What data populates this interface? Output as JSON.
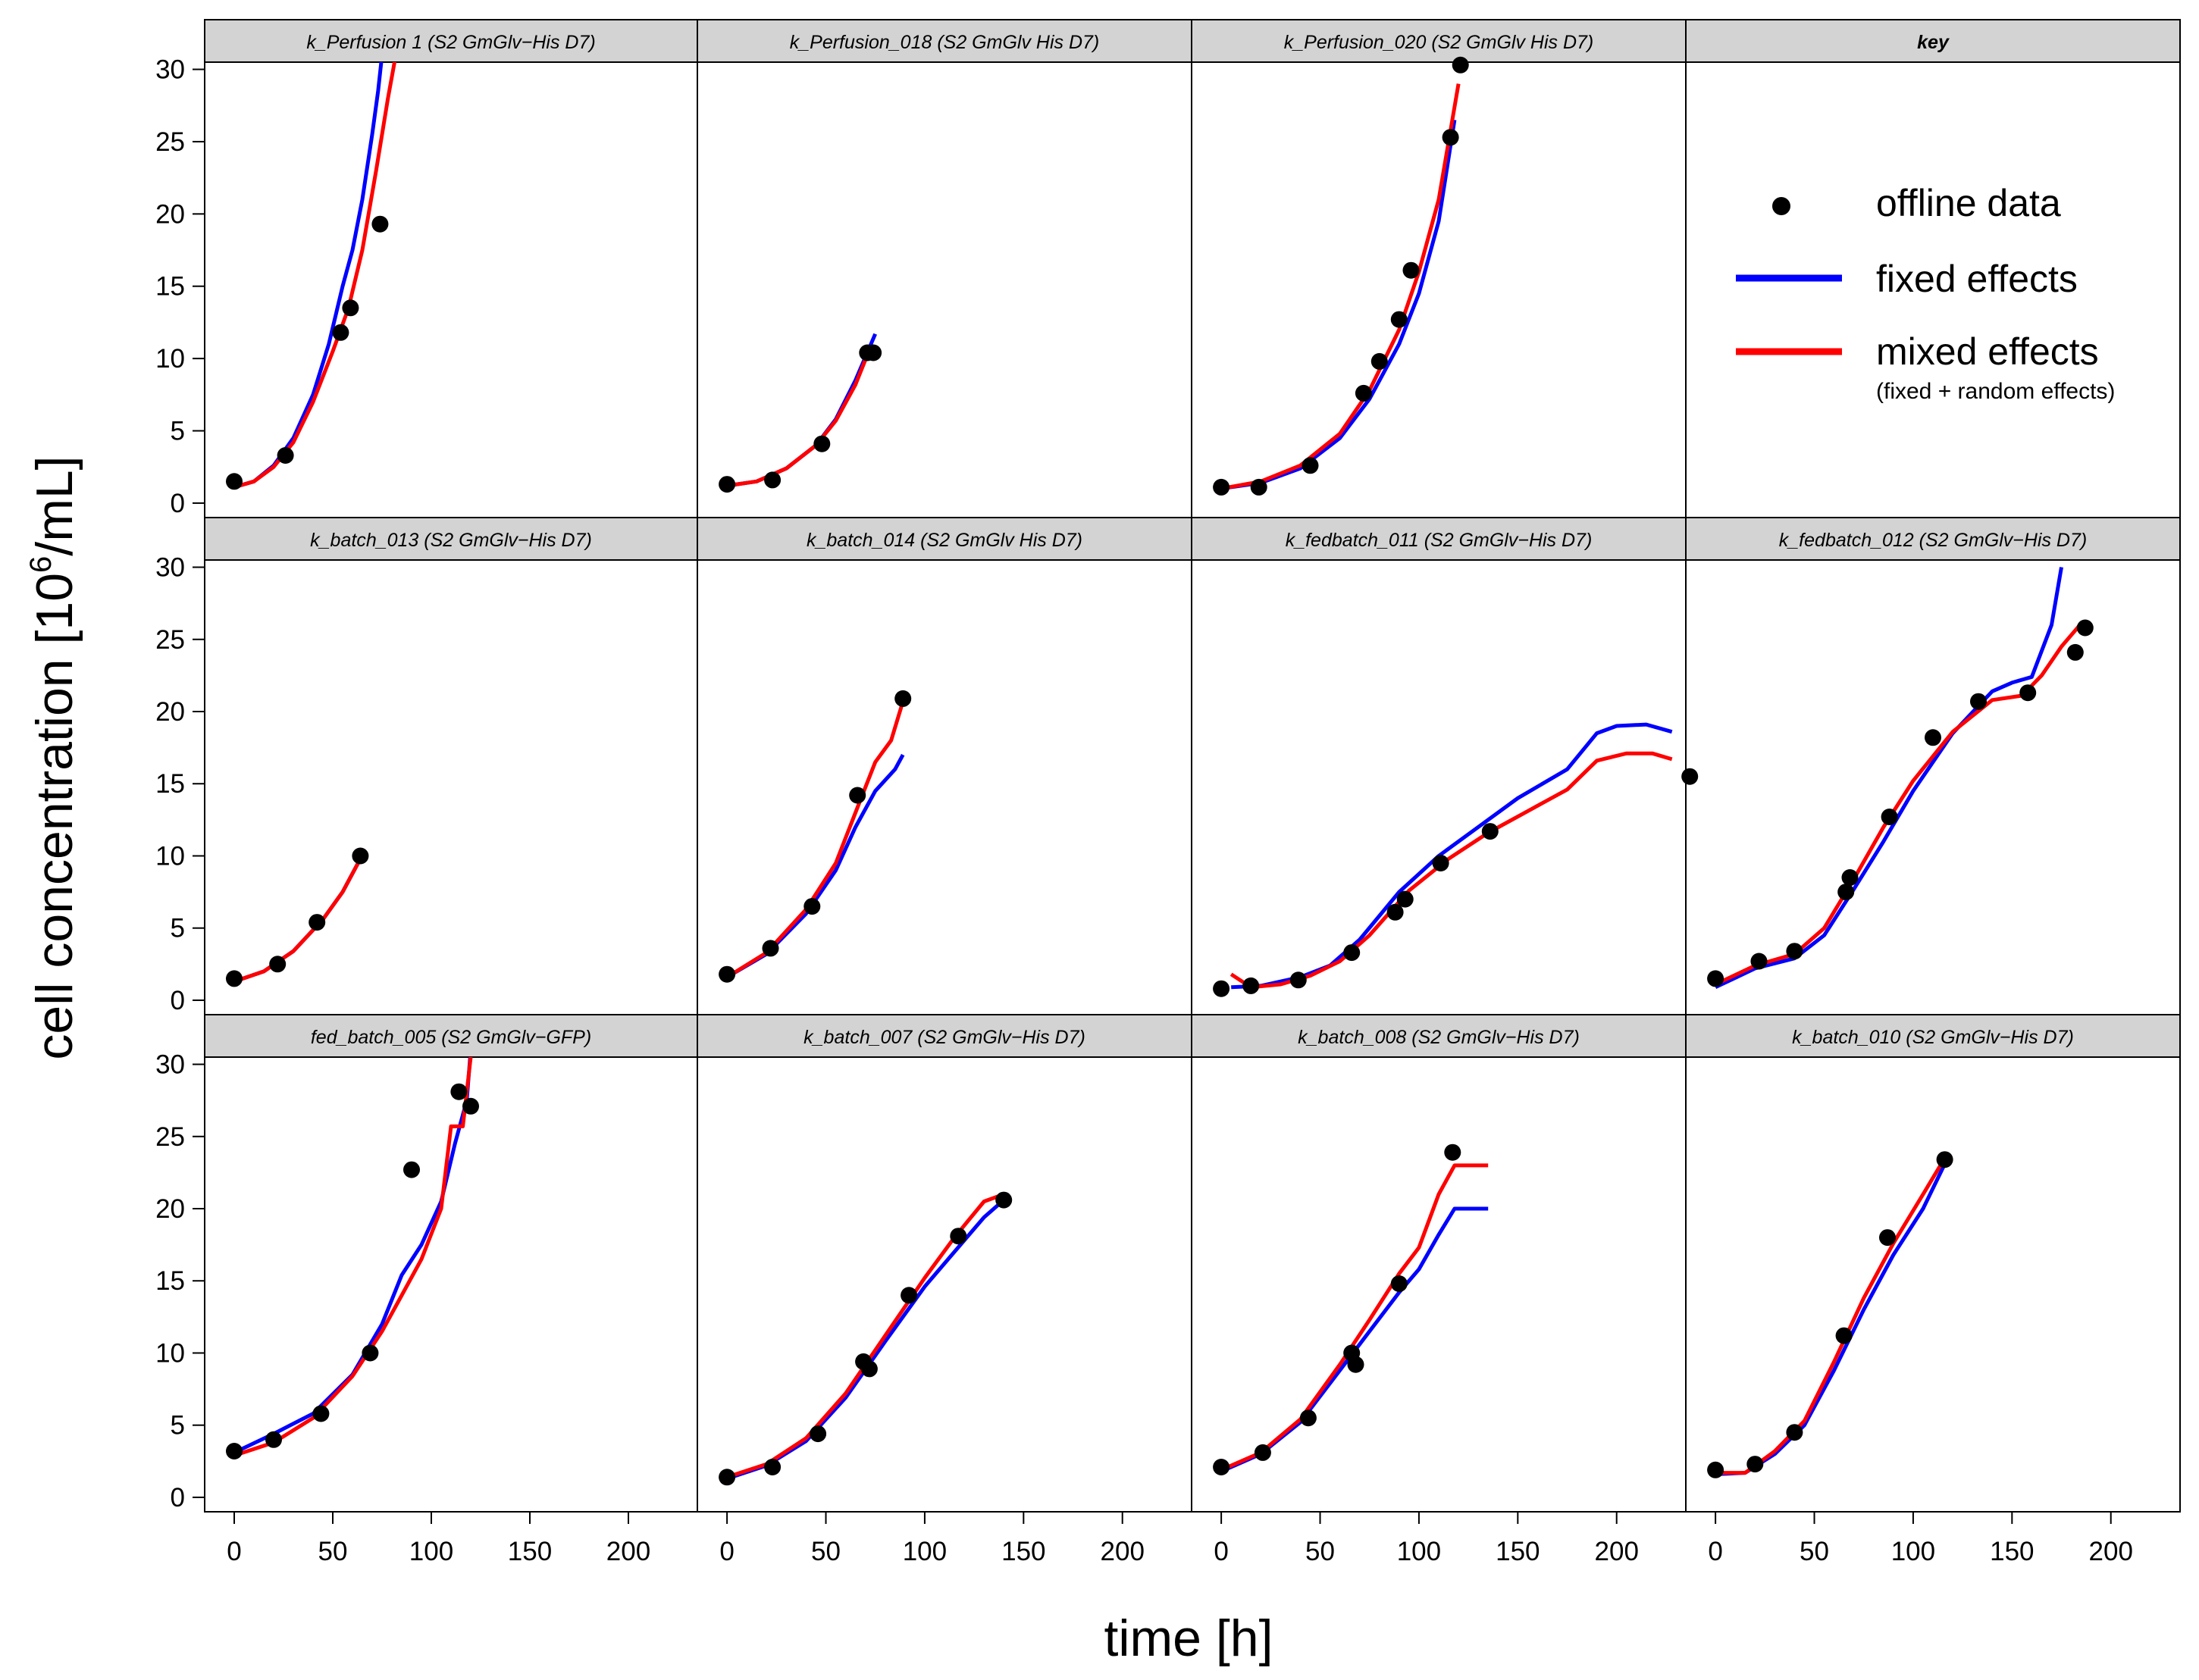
{
  "figure": {
    "ylabel_main": "cell concentration [10",
    "ylabel_sup": "6",
    "ylabel_end": "/mL]",
    "xlabel": "time [h]",
    "x_ticks": [
      0,
      50,
      100,
      150,
      200
    ],
    "y_ticks": [
      0,
      5,
      10,
      15,
      20,
      25,
      30
    ],
    "xlim": [
      -15,
      235
    ],
    "ylim": [
      -1,
      30.5
    ],
    "colors": {
      "points": "#000000",
      "fixed": "#0000ff",
      "mixed": "#ff0000",
      "strip": "#d3d3d3"
    }
  },
  "key": {
    "title": "key",
    "offline_label": "offline data",
    "fixed_label": "fixed effects",
    "mixed_label": "mixed effects",
    "mixed_sub": "(fixed + random effects)"
  },
  "chart_data": [
    {
      "type": "scatter+line",
      "title": "k_Perfusion 1 (S2 GmGlv−His D7)",
      "points": [
        [
          0,
          1.5
        ],
        [
          26,
          3.3
        ],
        [
          54,
          11.8
        ],
        [
          59,
          13.5
        ],
        [
          74,
          19.3
        ]
      ],
      "fixed": [
        [
          0,
          1.1
        ],
        [
          10,
          1.5
        ],
        [
          20,
          2.6
        ],
        [
          30,
          4.5
        ],
        [
          40,
          7.5
        ],
        [
          48,
          11
        ],
        [
          55,
          15
        ],
        [
          60,
          17.5
        ],
        [
          65,
          21
        ],
        [
          70,
          25.5
        ],
        [
          73,
          28.5
        ],
        [
          75,
          31
        ]
      ],
      "mixed": [
        [
          0,
          1.1
        ],
        [
          10,
          1.5
        ],
        [
          20,
          2.5
        ],
        [
          30,
          4.2
        ],
        [
          40,
          7
        ],
        [
          50,
          10.5
        ],
        [
          58,
          13.5
        ],
        [
          65,
          17.5
        ],
        [
          72,
          23
        ],
        [
          78,
          28
        ],
        [
          82,
          31
        ]
      ]
    },
    {
      "type": "scatter+line",
      "title": "k_Perfusion_018 (S2 GmGlv His D7)",
      "points": [
        [
          0,
          1.3
        ],
        [
          23,
          1.6
        ],
        [
          48,
          4.1
        ],
        [
          71,
          10.4
        ],
        [
          74,
          10.4
        ]
      ],
      "fixed": [
        [
          0,
          1.2
        ],
        [
          15,
          1.5
        ],
        [
          30,
          2.4
        ],
        [
          45,
          4
        ],
        [
          55,
          5.8
        ],
        [
          65,
          8.5
        ],
        [
          75,
          11.7
        ]
      ],
      "mixed": [
        [
          0,
          1.2
        ],
        [
          15,
          1.5
        ],
        [
          30,
          2.4
        ],
        [
          45,
          4
        ],
        [
          55,
          5.7
        ],
        [
          65,
          8.2
        ],
        [
          72,
          10.6
        ]
      ]
    },
    {
      "type": "scatter+line",
      "title": "k_Perfusion_020 (S2 GmGlv His D7)",
      "points": [
        [
          0,
          1.1
        ],
        [
          19,
          1.1
        ],
        [
          45,
          2.6
        ],
        [
          72,
          7.6
        ],
        [
          80,
          9.8
        ],
        [
          90,
          12.7
        ],
        [
          96,
          16.1
        ],
        [
          116,
          25.3
        ],
        [
          121,
          30.3
        ]
      ],
      "fixed": [
        [
          0,
          1
        ],
        [
          20,
          1.4
        ],
        [
          40,
          2.4
        ],
        [
          60,
          4.5
        ],
        [
          75,
          7.2
        ],
        [
          90,
          11
        ],
        [
          100,
          14.5
        ],
        [
          110,
          19.5
        ],
        [
          118,
          26.5
        ]
      ],
      "mixed": [
        [
          0,
          1
        ],
        [
          20,
          1.5
        ],
        [
          40,
          2.6
        ],
        [
          60,
          4.8
        ],
        [
          75,
          7.8
        ],
        [
          90,
          12
        ],
        [
          100,
          16
        ],
        [
          110,
          21
        ],
        [
          120,
          29
        ]
      ]
    },
    {
      "type": "scatter+line",
      "title": "k_batch_013 (S2 GmGlv−His D7)",
      "points": [
        [
          0,
          1.5
        ],
        [
          22,
          2.5
        ],
        [
          42,
          5.4
        ],
        [
          64,
          10
        ]
      ],
      "fixed": [
        [
          0,
          1.3
        ],
        [
          15,
          2
        ],
        [
          30,
          3.4
        ],
        [
          45,
          5.6
        ],
        [
          55,
          7.5
        ],
        [
          64,
          9.8
        ]
      ],
      "mixed": [
        [
          0,
          1.3
        ],
        [
          15,
          2
        ],
        [
          30,
          3.4
        ],
        [
          45,
          5.6
        ],
        [
          55,
          7.5
        ],
        [
          64,
          9.8
        ]
      ]
    },
    {
      "type": "scatter+line",
      "title": "k_batch_014 (S2 GmGlv His D7)",
      "points": [
        [
          0,
          1.8
        ],
        [
          22,
          3.6
        ],
        [
          43,
          6.5
        ],
        [
          66,
          14.2
        ],
        [
          89,
          20.9
        ]
      ],
      "fixed": [
        [
          0,
          1.6
        ],
        [
          20,
          3.2
        ],
        [
          40,
          6
        ],
        [
          55,
          9
        ],
        [
          65,
          12
        ],
        [
          75,
          14.5
        ],
        [
          85,
          16
        ],
        [
          89,
          17
        ]
      ],
      "mixed": [
        [
          0,
          1.6
        ],
        [
          20,
          3.3
        ],
        [
          40,
          6.3
        ],
        [
          55,
          9.5
        ],
        [
          65,
          13
        ],
        [
          75,
          16.5
        ],
        [
          83,
          18
        ],
        [
          89,
          20.7
        ]
      ]
    },
    {
      "type": "scatter+line",
      "title": "k_fedbatch_011 (S2 GmGlv−His D7)",
      "points": [
        [
          0,
          0.8
        ],
        [
          15,
          1
        ],
        [
          39,
          1.4
        ],
        [
          66,
          3.3
        ],
        [
          88,
          6.1
        ],
        [
          93,
          7
        ],
        [
          111,
          9.5
        ],
        [
          136,
          11.7
        ],
        [
          237,
          15.5
        ]
      ],
      "fixed": [
        [
          5,
          0.9
        ],
        [
          20,
          1
        ],
        [
          40,
          1.6
        ],
        [
          55,
          2.4
        ],
        [
          70,
          4.2
        ],
        [
          90,
          7.5
        ],
        [
          110,
          10
        ],
        [
          130,
          12
        ],
        [
          150,
          14
        ],
        [
          175,
          16
        ],
        [
          190,
          18.5
        ],
        [
          200,
          19
        ],
        [
          215,
          19.1
        ],
        [
          228,
          18.6
        ]
      ],
      "mixed": [
        [
          5,
          1.8
        ],
        [
          15,
          0.9
        ],
        [
          30,
          1.1
        ],
        [
          45,
          1.7
        ],
        [
          60,
          2.7
        ],
        [
          75,
          4.5
        ],
        [
          95,
          7.6
        ],
        [
          115,
          9.8
        ],
        [
          135,
          11.6
        ],
        [
          155,
          13.1
        ],
        [
          175,
          14.6
        ],
        [
          190,
          16.6
        ],
        [
          205,
          17.1
        ],
        [
          218,
          17.1
        ],
        [
          228,
          16.7
        ]
      ]
    },
    {
      "type": "scatter+line",
      "title": "k_fedbatch_012 (S2 GmGlv−His D7)",
      "points": [
        [
          0,
          1.5
        ],
        [
          22,
          2.7
        ],
        [
          40,
          3.4
        ],
        [
          66,
          7.5
        ],
        [
          68,
          8.5
        ],
        [
          88,
          12.7
        ],
        [
          110,
          18.2
        ],
        [
          133,
          20.7
        ],
        [
          158,
          21.3
        ],
        [
          182,
          24.1
        ],
        [
          187,
          25.8
        ]
      ],
      "fixed": [
        [
          0,
          0.9
        ],
        [
          20,
          2.2
        ],
        [
          40,
          2.9
        ],
        [
          55,
          4.5
        ],
        [
          70,
          7.7
        ],
        [
          85,
          11
        ],
        [
          100,
          14.5
        ],
        [
          120,
          18.5
        ],
        [
          140,
          21.4
        ],
        [
          150,
          22
        ],
        [
          160,
          22.4
        ],
        [
          170,
          26
        ],
        [
          175,
          30
        ]
      ],
      "mixed": [
        [
          0,
          1.1
        ],
        [
          20,
          2.4
        ],
        [
          40,
          3.2
        ],
        [
          55,
          5
        ],
        [
          70,
          8.4
        ],
        [
          85,
          12
        ],
        [
          100,
          15.2
        ],
        [
          120,
          18.6
        ],
        [
          140,
          20.8
        ],
        [
          155,
          21.1
        ],
        [
          165,
          22.5
        ],
        [
          175,
          24.5
        ],
        [
          185,
          26.1
        ]
      ]
    },
    {
      "type": "scatter+line",
      "title": "fed_batch_005 (S2 GmGlv−GFP)",
      "points": [
        [
          0,
          3.2
        ],
        [
          20,
          4
        ],
        [
          44,
          5.8
        ],
        [
          69,
          10
        ],
        [
          90,
          22.7
        ],
        [
          114,
          28.1
        ],
        [
          120,
          27.1
        ]
      ],
      "fixed": [
        [
          0,
          3.1
        ],
        [
          20,
          4.4
        ],
        [
          40,
          5.8
        ],
        [
          60,
          8.5
        ],
        [
          75,
          12
        ],
        [
          85,
          15.4
        ],
        [
          95,
          17.5
        ],
        [
          105,
          20.5
        ],
        [
          112,
          24.5
        ],
        [
          118,
          27.5
        ],
        [
          120,
          31
        ]
      ],
      "mixed": [
        [
          0,
          2.9
        ],
        [
          20,
          3.8
        ],
        [
          40,
          5.5
        ],
        [
          60,
          8.4
        ],
        [
          75,
          11.5
        ],
        [
          85,
          14
        ],
        [
          95,
          16.5
        ],
        [
          105,
          20
        ],
        [
          110,
          25.7
        ],
        [
          116,
          25.7
        ],
        [
          120,
          30.5
        ]
      ]
    },
    {
      "type": "scatter+line",
      "title": "k_batch_007 (S2 GmGlv−His D7)",
      "points": [
        [
          0,
          1.4
        ],
        [
          23,
          2.1
        ],
        [
          46,
          4.4
        ],
        [
          69,
          9.4
        ],
        [
          72,
          8.9
        ],
        [
          92,
          14
        ],
        [
          117,
          18.1
        ],
        [
          140,
          20.6
        ]
      ],
      "fixed": [
        [
          0,
          1.3
        ],
        [
          20,
          2.2
        ],
        [
          40,
          3.9
        ],
        [
          60,
          6.9
        ],
        [
          80,
          10.8
        ],
        [
          100,
          14.6
        ],
        [
          115,
          17
        ],
        [
          130,
          19.4
        ],
        [
          140,
          20.6
        ]
      ],
      "mixed": [
        [
          0,
          1.4
        ],
        [
          20,
          2.3
        ],
        [
          40,
          4.1
        ],
        [
          60,
          7.2
        ],
        [
          80,
          11.2
        ],
        [
          100,
          15.2
        ],
        [
          115,
          18
        ],
        [
          130,
          20.5
        ],
        [
          140,
          21
        ]
      ]
    },
    {
      "type": "scatter+line",
      "title": "k_batch_008 (S2 GmGlv−His D7)",
      "points": [
        [
          0,
          2.1
        ],
        [
          21,
          3.1
        ],
        [
          44,
          5.5
        ],
        [
          66,
          10
        ],
        [
          68,
          9.2
        ],
        [
          90,
          14.8
        ],
        [
          117,
          23.9
        ]
      ],
      "fixed": [
        [
          0,
          1.8
        ],
        [
          20,
          3
        ],
        [
          40,
          5.2
        ],
        [
          60,
          8.8
        ],
        [
          75,
          11.5
        ],
        [
          90,
          14.2
        ],
        [
          100,
          15.8
        ],
        [
          110,
          18.2
        ],
        [
          118,
          20
        ],
        [
          135,
          20
        ]
      ],
      "mixed": [
        [
          0,
          1.9
        ],
        [
          20,
          3.1
        ],
        [
          40,
          5.4
        ],
        [
          60,
          9.2
        ],
        [
          75,
          12.3
        ],
        [
          90,
          15.5
        ],
        [
          100,
          17.3
        ],
        [
          110,
          21
        ],
        [
          118,
          23
        ],
        [
          135,
          23
        ]
      ]
    },
    {
      "type": "scatter+line",
      "title": "k_batch_010 (S2 GmGlv−His D7)",
      "points": [
        [
          0,
          1.9
        ],
        [
          20,
          2.3
        ],
        [
          40,
          4.5
        ],
        [
          65,
          11.2
        ],
        [
          87,
          18
        ],
        [
          116,
          23.4
        ]
      ],
      "fixed": [
        [
          0,
          1.6
        ],
        [
          15,
          1.7
        ],
        [
          30,
          3
        ],
        [
          45,
          5
        ],
        [
          60,
          8.8
        ],
        [
          75,
          13
        ],
        [
          90,
          16.8
        ],
        [
          105,
          20
        ],
        [
          116,
          23.1
        ]
      ],
      "mixed": [
        [
          0,
          1.7
        ],
        [
          15,
          1.7
        ],
        [
          30,
          3.2
        ],
        [
          45,
          5.3
        ],
        [
          60,
          9.4
        ],
        [
          75,
          13.8
        ],
        [
          90,
          17.6
        ],
        [
          105,
          21
        ],
        [
          116,
          23.5
        ]
      ]
    }
  ]
}
